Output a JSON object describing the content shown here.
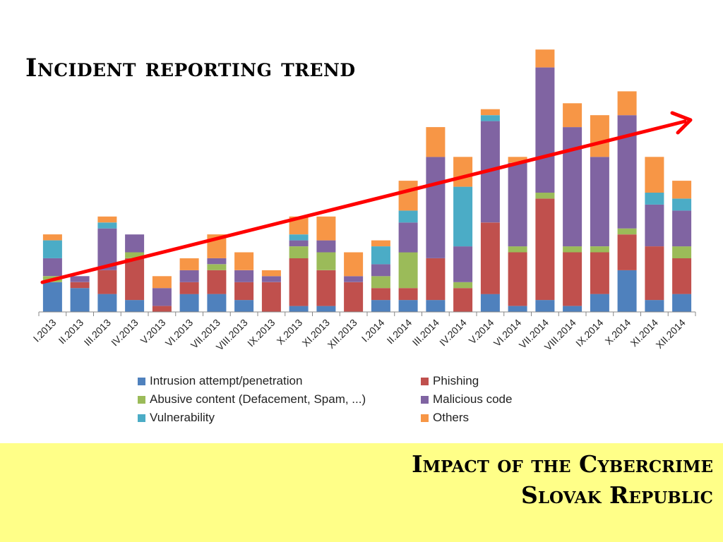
{
  "title": "Incident reporting trend",
  "footer": {
    "line1": "Impact of the Cybercrime",
    "line2": "Slovak Republic"
  },
  "colors": {
    "intrusion": "#4F81BD",
    "phishing": "#C0504D",
    "abusive": "#9BBB59",
    "malicious": "#8064A2",
    "vulnerability": "#4BACC6",
    "others": "#F79646",
    "trend": "#FF0000",
    "footer_band": "#FFFF88"
  },
  "chart_data": {
    "type": "bar",
    "stacked": true,
    "categories": [
      "I.2013",
      "II.2013",
      "III.2013",
      "IV.2013",
      "V.2013",
      "VI.2013",
      "VII.2013",
      "VIII.2013",
      "IX.2013",
      "X.2013",
      "XI.2013",
      "XII.2013",
      "I.2014",
      "II.2014",
      "III.2014",
      "IV.2014",
      "V.2014",
      "VI.2014",
      "VII.2014",
      "VIII.2014",
      "IX.2014",
      "X.2014",
      "XI.2014",
      "XII.2014"
    ],
    "series": [
      {
        "name": "Intrusion attempt/penetration",
        "color": "#4F81BD",
        "values": [
          5,
          4,
          3,
          2,
          0,
          3,
          3,
          2,
          0,
          1,
          1,
          0,
          2,
          2,
          2,
          0,
          3,
          1,
          2,
          1,
          3,
          7,
          2,
          3
        ]
      },
      {
        "name": "Phishing",
        "color": "#C0504D",
        "values": [
          0,
          1,
          4,
          7,
          1,
          2,
          4,
          3,
          5,
          8,
          6,
          5,
          2,
          2,
          7,
          4,
          12,
          9,
          17,
          9,
          7,
          6,
          9,
          6
        ]
      },
      {
        "name": "Abusive content (Defacement, Spam, ...)",
        "color": "#9BBB59",
        "values": [
          1,
          0,
          0,
          1,
          0,
          0,
          1,
          0,
          0,
          2,
          3,
          0,
          2,
          6,
          0,
          1,
          0,
          1,
          1,
          1,
          1,
          1,
          0,
          2
        ]
      },
      {
        "name": "Malicious code",
        "color": "#8064A2",
        "values": [
          3,
          1,
          7,
          3,
          3,
          2,
          1,
          2,
          1,
          1,
          2,
          1,
          2,
          5,
          17,
          6,
          17,
          14,
          21,
          20,
          15,
          19,
          7,
          6
        ]
      },
      {
        "name": "Vulnerability",
        "color": "#4BACC6",
        "values": [
          3,
          0,
          1,
          0,
          0,
          0,
          0,
          0,
          0,
          1,
          0,
          0,
          3,
          2,
          0,
          10,
          1,
          0,
          0,
          0,
          0,
          0,
          2,
          2
        ]
      },
      {
        "name": "Others",
        "color": "#F79646",
        "values": [
          1,
          0,
          1,
          0,
          2,
          2,
          4,
          3,
          1,
          3,
          4,
          4,
          1,
          5,
          5,
          5,
          1,
          1,
          3,
          4,
          7,
          4,
          6,
          3
        ]
      }
    ],
    "ylim": [
      0,
      45
    ],
    "grid": false,
    "legend_position": "bottom",
    "annotation": "upward trend arrow"
  }
}
